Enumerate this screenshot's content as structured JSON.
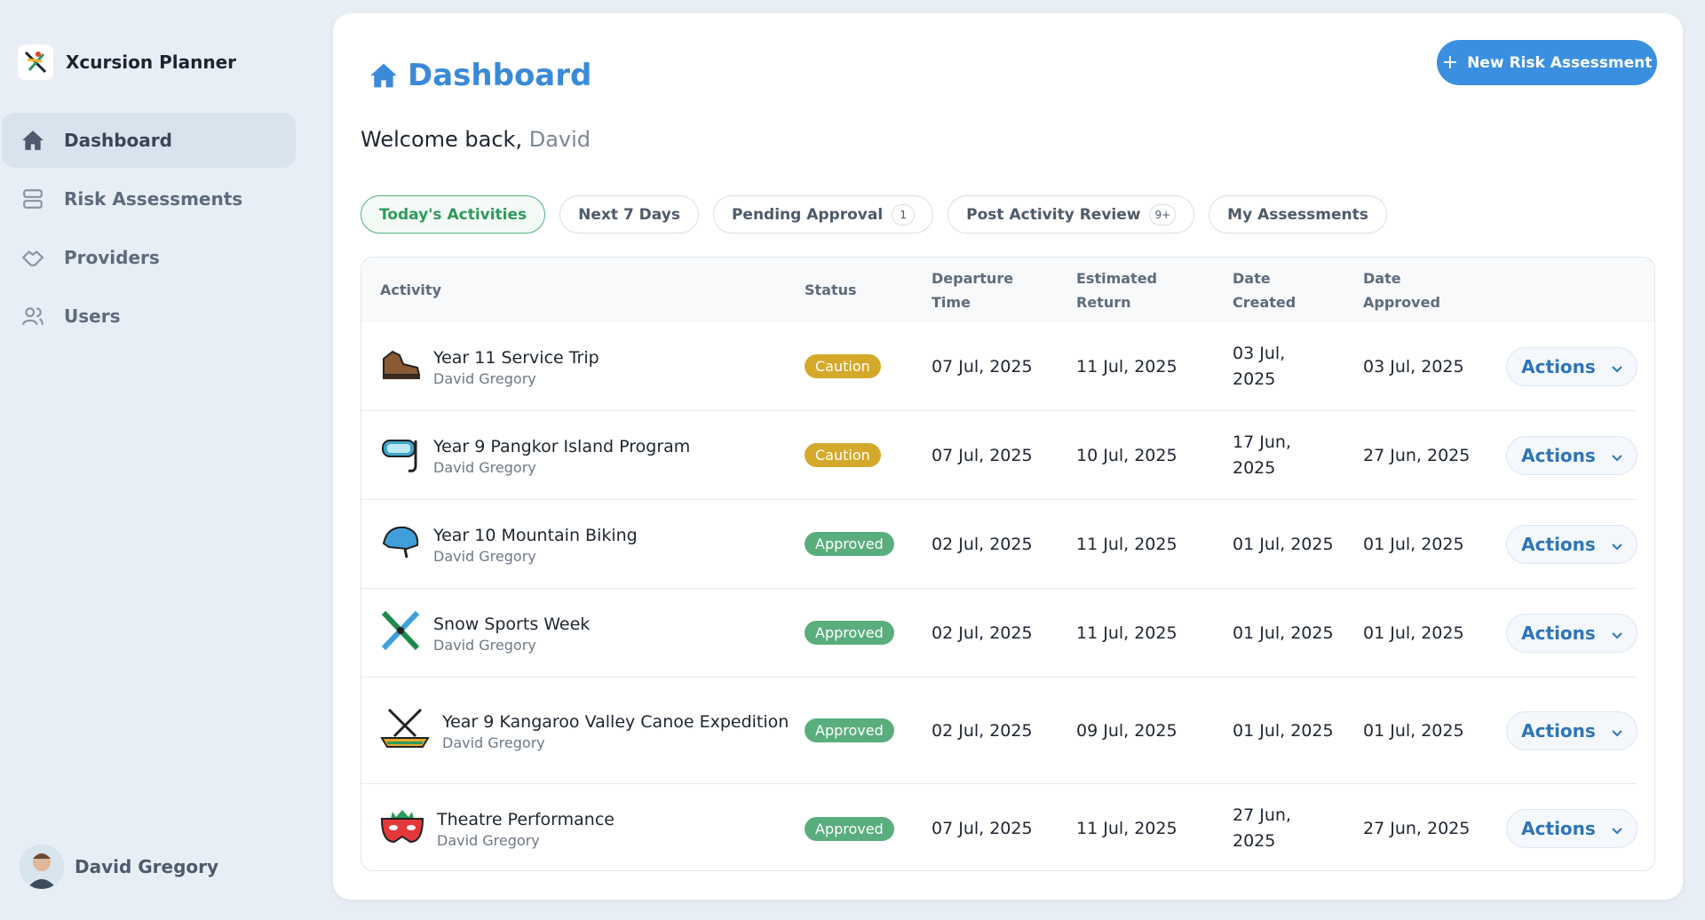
{
  "app": {
    "name": "Xcursion Planner"
  },
  "nav": [
    "Dashboard",
    "Risk Assessments",
    "Providers",
    "Users"
  ],
  "user": {
    "name": "David Gregory"
  },
  "header": {
    "title": "Dashboard",
    "button": "New Risk Assessment"
  },
  "welcome": {
    "greeting": "Welcome back,",
    "name": "David"
  },
  "tabs": [
    {
      "label": "Today's Activities"
    },
    {
      "label": "Next 7 Days"
    },
    {
      "label": "Pending Approval",
      "badge": "1"
    },
    {
      "label": "Post Activity Review",
      "badge": "9+"
    },
    {
      "label": "My Assessments"
    }
  ],
  "table": {
    "columns": [
      "Activity",
      "Status",
      "Departure Time",
      "Estimated Return",
      "Date Created",
      "Date Approved"
    ],
    "action_label": "Actions",
    "rows": [
      {
        "activity": "Year 11 Service Trip",
        "owner": "David Gregory",
        "status": "Caution",
        "departure": "07 Jul, 2025",
        "return": "11 Jul, 2025",
        "created": "03 Jul, 2025",
        "approved": "03 Jul, 2025"
      },
      {
        "activity": "Year 9 Pangkor Island Program",
        "owner": "David Gregory",
        "status": "Caution",
        "departure": "07 Jul, 2025",
        "return": "10 Jul, 2025",
        "created": "17 Jun, 2025",
        "approved": "27 Jun, 2025"
      },
      {
        "activity": "Year 10 Mountain Biking",
        "owner": "David Gregory",
        "status": "Approved",
        "departure": "02 Jul, 2025",
        "return": "11 Jul, 2025",
        "created": "01 Jul, 2025",
        "approved": "01 Jul, 2025"
      },
      {
        "activity": "Snow Sports Week",
        "owner": "David Gregory",
        "status": "Approved",
        "departure": "02 Jul, 2025",
        "return": "11 Jul, 2025",
        "created": "01 Jul, 2025",
        "approved": "01 Jul, 2025"
      },
      {
        "activity": "Year 9 Kangaroo Valley Canoe Expedition",
        "owner": "David Gregory",
        "status": "Approved",
        "departure": "02 Jul, 2025",
        "return": "09 Jul, 2025",
        "created": "01 Jul, 2025",
        "approved": "01 Jul, 2025"
      },
      {
        "activity": "Theatre Performance",
        "owner": "David Gregory",
        "status": "Approved",
        "departure": "07 Jul, 2025",
        "return": "11 Jul, 2025",
        "created": "27 Jun, 2025",
        "approved": "27 Jun, 2025"
      }
    ]
  }
}
